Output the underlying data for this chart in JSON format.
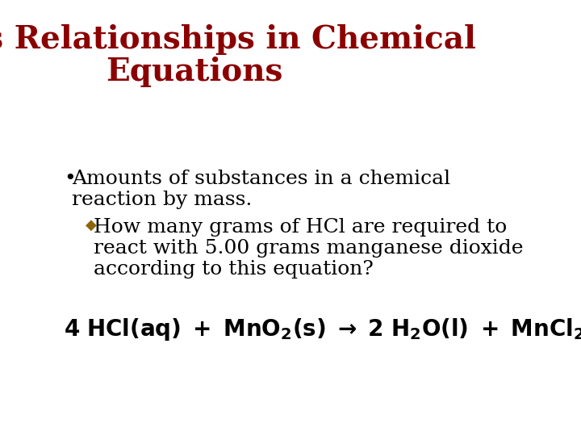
{
  "title_line1": "Mass Relationships in Chemical",
  "title_line2": "Equations",
  "title_color": "#8B0000",
  "title_fontsize": 28,
  "bullet_text_line1": "Amounts of substances in a chemical",
  "bullet_text_line2": "reaction by mass.",
  "bullet_color": "#000000",
  "bullet_fontsize": 18,
  "sub_bullet_color": "#8B6508",
  "sub_bullet_text_line1": "How many grams of HCl are required to",
  "sub_bullet_text_line2": "react with 5.00 grams manganese dioxide",
  "sub_bullet_text_line3": "according to this equation?",
  "sub_bullet_fontsize": 18,
  "equation_fontsize": 20,
  "background_color": "#FFFFFF",
  "text_color": "#000000"
}
